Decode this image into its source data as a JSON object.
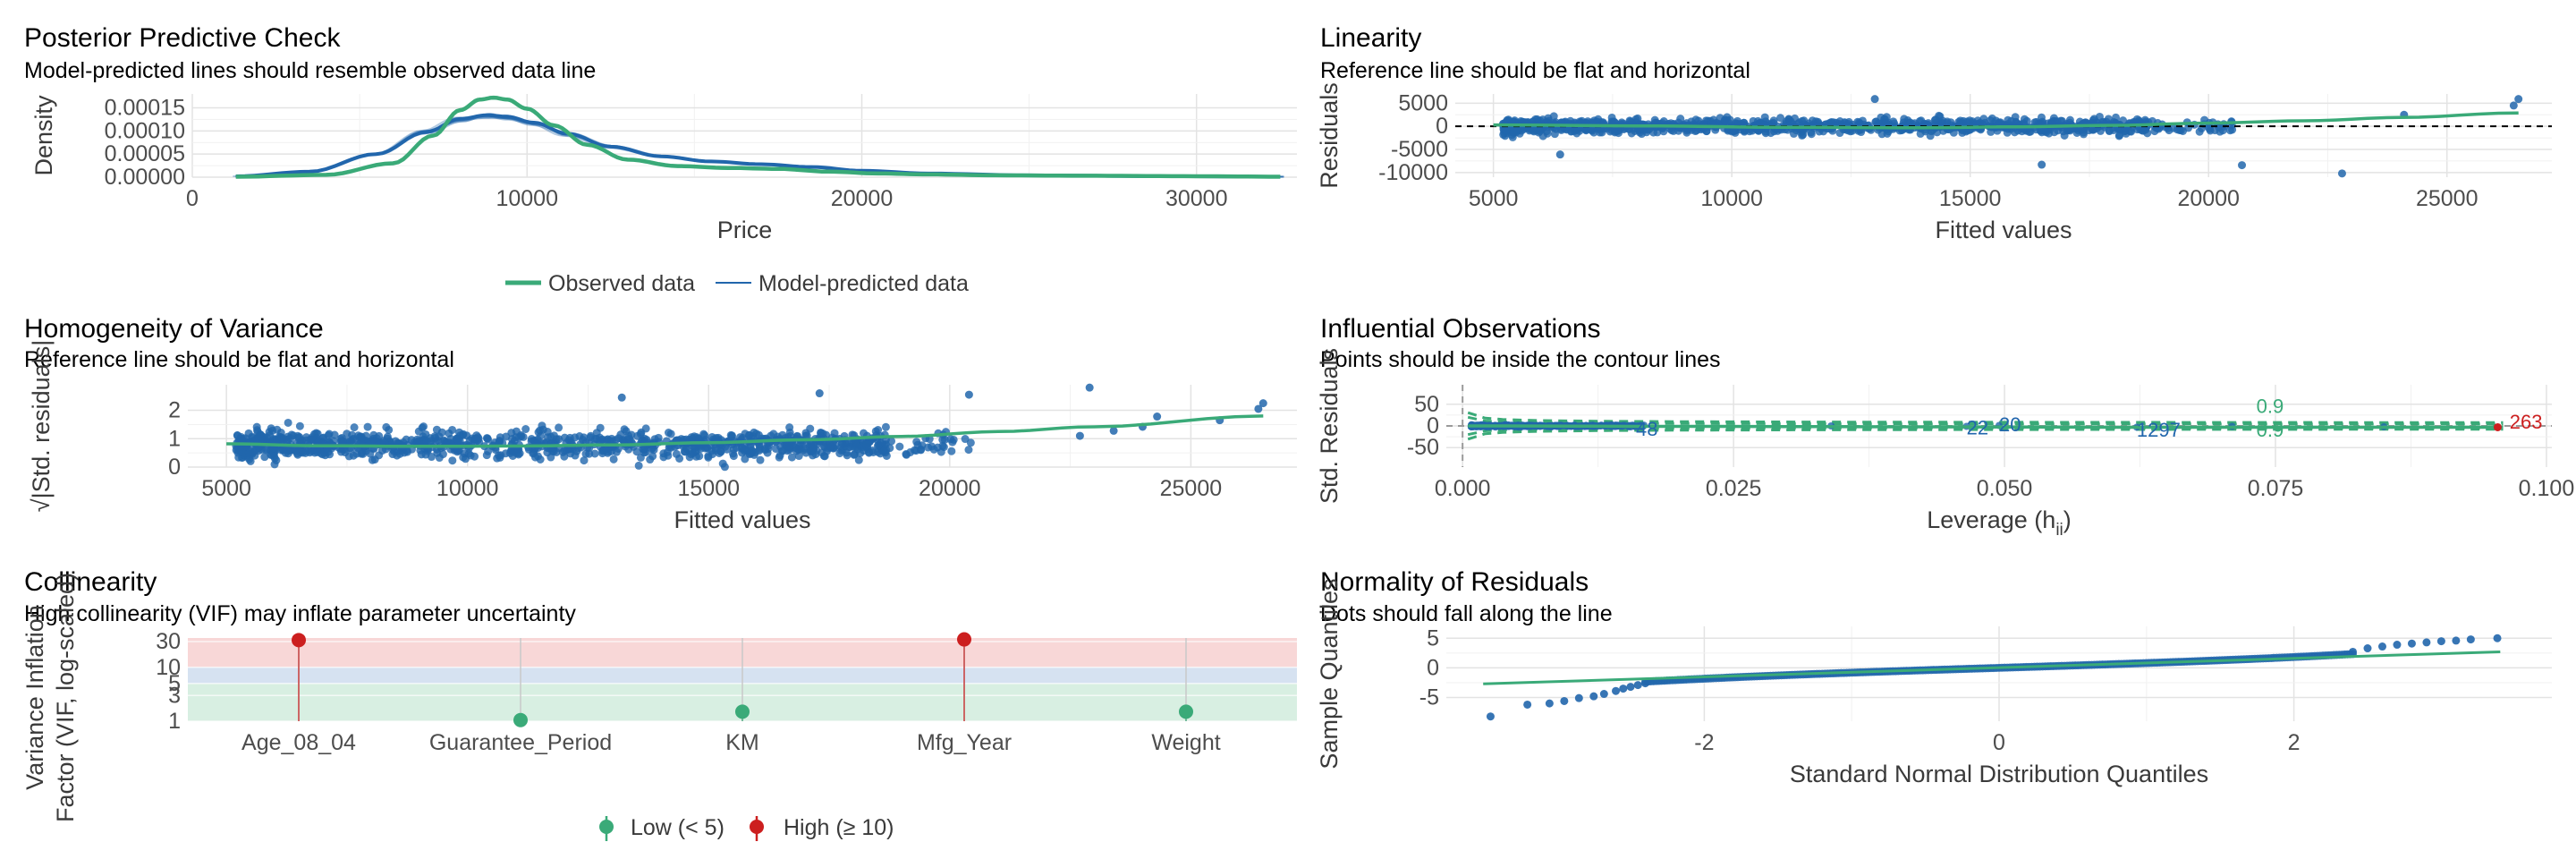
{
  "colors": {
    "green": "#3aaa78",
    "blue": "#2166ac",
    "red": "#cc1f1f",
    "grid": "#e3e3e3",
    "vif_high_band": "#f8d7d7",
    "vif_mid_band": "#d6e2f1",
    "vif_low_band": "#d8efe2"
  },
  "chart_data": [
    {
      "id": "ppc",
      "type": "line",
      "title": "Posterior Predictive Check",
      "subtitle": "Model-predicted lines should resemble observed data line",
      "xlabel": "Price",
      "ylabel": "Density",
      "xlim": [
        0,
        33000
      ],
      "ylim": [
        0,
        0.00018
      ],
      "xticks": [
        0,
        10000,
        20000,
        30000
      ],
      "xtick_labels": [
        "0",
        "10000",
        "20000",
        "30000"
      ],
      "yticks": [
        0,
        5e-05,
        0.0001,
        0.00015
      ],
      "ytick_labels": [
        "0.00000",
        "0.00005",
        "0.00010",
        "0.00015"
      ],
      "grid": true,
      "legend_position": "bottom",
      "legend": [
        "Observed data",
        "Model-predicted data"
      ],
      "series": [
        {
          "name": "Observed data",
          "color": "green",
          "x": [
            1300,
            4000,
            6000,
            7200,
            8000,
            8600,
            9000,
            9400,
            10000,
            10800,
            11800,
            13000,
            14500,
            16000,
            17500,
            19000,
            20500,
            22000,
            24000,
            27000,
            30000,
            32500
          ],
          "y": [
            1e-06,
            5e-06,
            3e-05,
            9e-05,
            0.000145,
            0.000168,
            0.000172,
            0.000168,
            0.000148,
            0.000112,
            7e-05,
            3.8e-05,
            2.4e-05,
            2e-05,
            1.8e-05,
            1.2e-05,
            8e-06,
            6e-06,
            4e-06,
            3e-06,
            2e-06,
            1e-06
          ]
        },
        {
          "name": "Model-predicted data",
          "color": "blue",
          "x": [
            1300,
            3500,
            5500,
            7000,
            8000,
            8800,
            9400,
            10200,
            11200,
            12500,
            14000,
            15500,
            17000,
            18500,
            20000,
            22000,
            25000,
            29000,
            32500
          ],
          "y": [
            2e-06,
            1.2e-05,
            5e-05,
            9.8e-05,
            0.000126,
            0.000134,
            0.000131,
            0.000118,
            9.4e-05,
            6.6e-05,
            4.5e-05,
            3.4e-05,
            2.8e-05,
            2.2e-05,
            1.4e-05,
            8e-06,
            4e-06,
            2e-06,
            1e-06
          ]
        }
      ]
    },
    {
      "id": "linearity",
      "type": "scatter",
      "title": "Linearity",
      "subtitle": "Reference line should be flat and horizontal",
      "xlabel": "Fitted values",
      "ylabel": "Residuals",
      "xlim": [
        4200,
        27200
      ],
      "ylim": [
        -11000,
        7000
      ],
      "xticks": [
        5000,
        10000,
        15000,
        20000,
        25000
      ],
      "xtick_labels": [
        "5000",
        "10000",
        "15000",
        "20000",
        "25000"
      ],
      "yticks": [
        -10000,
        -5000,
        0,
        5000
      ],
      "ytick_labels": [
        "-10000",
        "-5000",
        "0",
        "5000"
      ],
      "grid": true,
      "reference_line_y": 0,
      "smooth": {
        "x": [
          5000,
          8000,
          11000,
          14000,
          16000,
          18000,
          20000,
          22000,
          24000,
          26500
        ],
        "y": [
          300,
          100,
          -200,
          -300,
          -100,
          200,
          700,
          1200,
          1900,
          2900
        ]
      },
      "outliers": [
        [
          13000,
          5900
        ],
        [
          22800,
          -10200
        ],
        [
          16500,
          -8300
        ],
        [
          6400,
          -6100
        ],
        [
          20700,
          -8400
        ],
        [
          24100,
          2500
        ],
        [
          26500,
          5900
        ],
        [
          26400,
          4500
        ]
      ]
    },
    {
      "id": "homogeneity",
      "type": "scatter",
      "title": "Homogeneity of Variance",
      "subtitle": "Reference line should be flat and horizontal",
      "xlabel": "Fitted values",
      "ylabel": "√|Std. residuals|",
      "xlim": [
        4200,
        27200
      ],
      "ylim": [
        0,
        2.9
      ],
      "xticks": [
        5000,
        10000,
        15000,
        20000,
        25000
      ],
      "xtick_labels": [
        "5000",
        "10000",
        "15000",
        "20000",
        "25000"
      ],
      "yticks": [
        0,
        1,
        2
      ],
      "ytick_labels": [
        "0",
        "1",
        "2"
      ],
      "grid": true,
      "smooth": {
        "x": [
          5000,
          7000,
          9000,
          11000,
          13000,
          15000,
          17000,
          19000,
          21000,
          23000,
          26500
        ],
        "y": [
          0.82,
          0.75,
          0.73,
          0.74,
          0.78,
          0.86,
          0.96,
          1.08,
          1.25,
          1.42,
          1.8
        ]
      },
      "outliers": [
        [
          22900,
          2.8
        ],
        [
          26500,
          2.25
        ],
        [
          26400,
          2.05
        ],
        [
          23400,
          1.28
        ],
        [
          22700,
          1.1
        ],
        [
          24300,
          1.78
        ],
        [
          24000,
          1.42
        ],
        [
          25600,
          1.65
        ],
        [
          13200,
          2.45
        ],
        [
          17300,
          2.6
        ],
        [
          20400,
          2.55
        ]
      ]
    },
    {
      "id": "influential",
      "type": "scatter",
      "title": "Influential Observations",
      "subtitle": "Points should be inside the contour lines",
      "xlabel": "Leverage (h",
      "xlabel_sub": "ii",
      "xlabel_close": ")",
      "ylabel": "Std. Residuals",
      "xlim": [
        -0.0015,
        0.1005
      ],
      "ylim": [
        -95,
        95
      ],
      "xticks": [
        0,
        0.025,
        0.05,
        0.075,
        0.1
      ],
      "xtick_labels": [
        "0.000",
        "0.025",
        "0.050",
        "0.075",
        "0.100"
      ],
      "yticks": [
        -50,
        0,
        50
      ],
      "ytick_labels": [
        "-50",
        "0",
        "50"
      ],
      "grid": true,
      "contour_labels": [
        "0.9",
        "0.9"
      ],
      "point_labels": [
        {
          "text": "48",
          "x": 0.016,
          "y": -6,
          "color": "blue"
        },
        {
          "text": "22",
          "x": 0.0465,
          "y": -3,
          "color": "blue"
        },
        {
          "text": "20",
          "x": 0.0495,
          "y": 4,
          "color": "blue"
        },
        {
          "text": "1297",
          "x": 0.0622,
          "y": -8,
          "color": "blue"
        },
        {
          "text": "263",
          "x": 0.0966,
          "y": 10,
          "color": "red"
        }
      ],
      "smooth": {
        "x": [
          0.0005,
          0.02,
          0.04,
          0.06,
          0.08,
          0.096
        ],
        "y": [
          0,
          -1,
          -2,
          -3,
          -3,
          -3
        ]
      },
      "high_point": [
        0.0955,
        -3
      ]
    },
    {
      "id": "collinearity",
      "type": "scatter",
      "title": "Collinearity",
      "subtitle": "High collinearity (VIF) may inflate parameter uncertainty",
      "xlabel": "",
      "ylabel": "Variance Inflation",
      "ylabel2": "Factor (VIF, log-scaled)",
      "log_scale_y": true,
      "ylim": [
        1,
        35
      ],
      "yticks": [
        1,
        3,
        5,
        10,
        30
      ],
      "ytick_labels": [
        "1",
        "3",
        "5",
        "10",
        "30"
      ],
      "categories": [
        "Age_08_04",
        "Guarantee_Period",
        "KM",
        "Mfg_Year",
        "Weight"
      ],
      "values": [
        32,
        1.05,
        1.5,
        33,
        1.5
      ],
      "point_colors": [
        "red",
        "green",
        "green",
        "red",
        "green"
      ],
      "legend_position": "bottom",
      "legend": [
        "Low (< 5)",
        "High (≥ 10)"
      ]
    },
    {
      "id": "normality",
      "type": "scatter",
      "title": "Normality of Residuals",
      "subtitle": "Dots should fall along the line",
      "xlabel": "Standard Normal Distribution Quantiles",
      "ylabel": "Sample Quantiles",
      "xlim": [
        -3.75,
        3.75
      ],
      "ylim": [
        -9,
        7
      ],
      "xticks": [
        -2,
        0,
        2
      ],
      "xtick_labels": [
        "-2",
        "0",
        "2"
      ],
      "yticks": [
        -5,
        0,
        5
      ],
      "ytick_labels": [
        "-5",
        "0",
        "5"
      ],
      "grid": true,
      "reference_line": [
        [
          -3.5,
          -2.7
        ],
        [
          3.4,
          2.7
        ]
      ],
      "points": [
        [
          -3.45,
          -8.2
        ],
        [
          -3.2,
          -6.2
        ],
        [
          -3.05,
          -6.0
        ],
        [
          -2.95,
          -5.6
        ],
        [
          -2.85,
          -5.1
        ],
        [
          -2.75,
          -4.8
        ],
        [
          -2.68,
          -4.4
        ],
        [
          -2.6,
          -3.9
        ],
        [
          -2.55,
          -3.5
        ],
        [
          -2.5,
          -3.2
        ],
        [
          -2.45,
          -2.9
        ],
        [
          -2.4,
          -2.6
        ],
        [
          2.4,
          2.7
        ],
        [
          2.5,
          3.3
        ],
        [
          2.6,
          3.6
        ],
        [
          2.7,
          3.9
        ],
        [
          2.8,
          4.1
        ],
        [
          2.9,
          4.3
        ],
        [
          3.0,
          4.5
        ],
        [
          3.1,
          4.6
        ],
        [
          3.2,
          4.8
        ],
        [
          3.38,
          5.0
        ]
      ]
    }
  ]
}
